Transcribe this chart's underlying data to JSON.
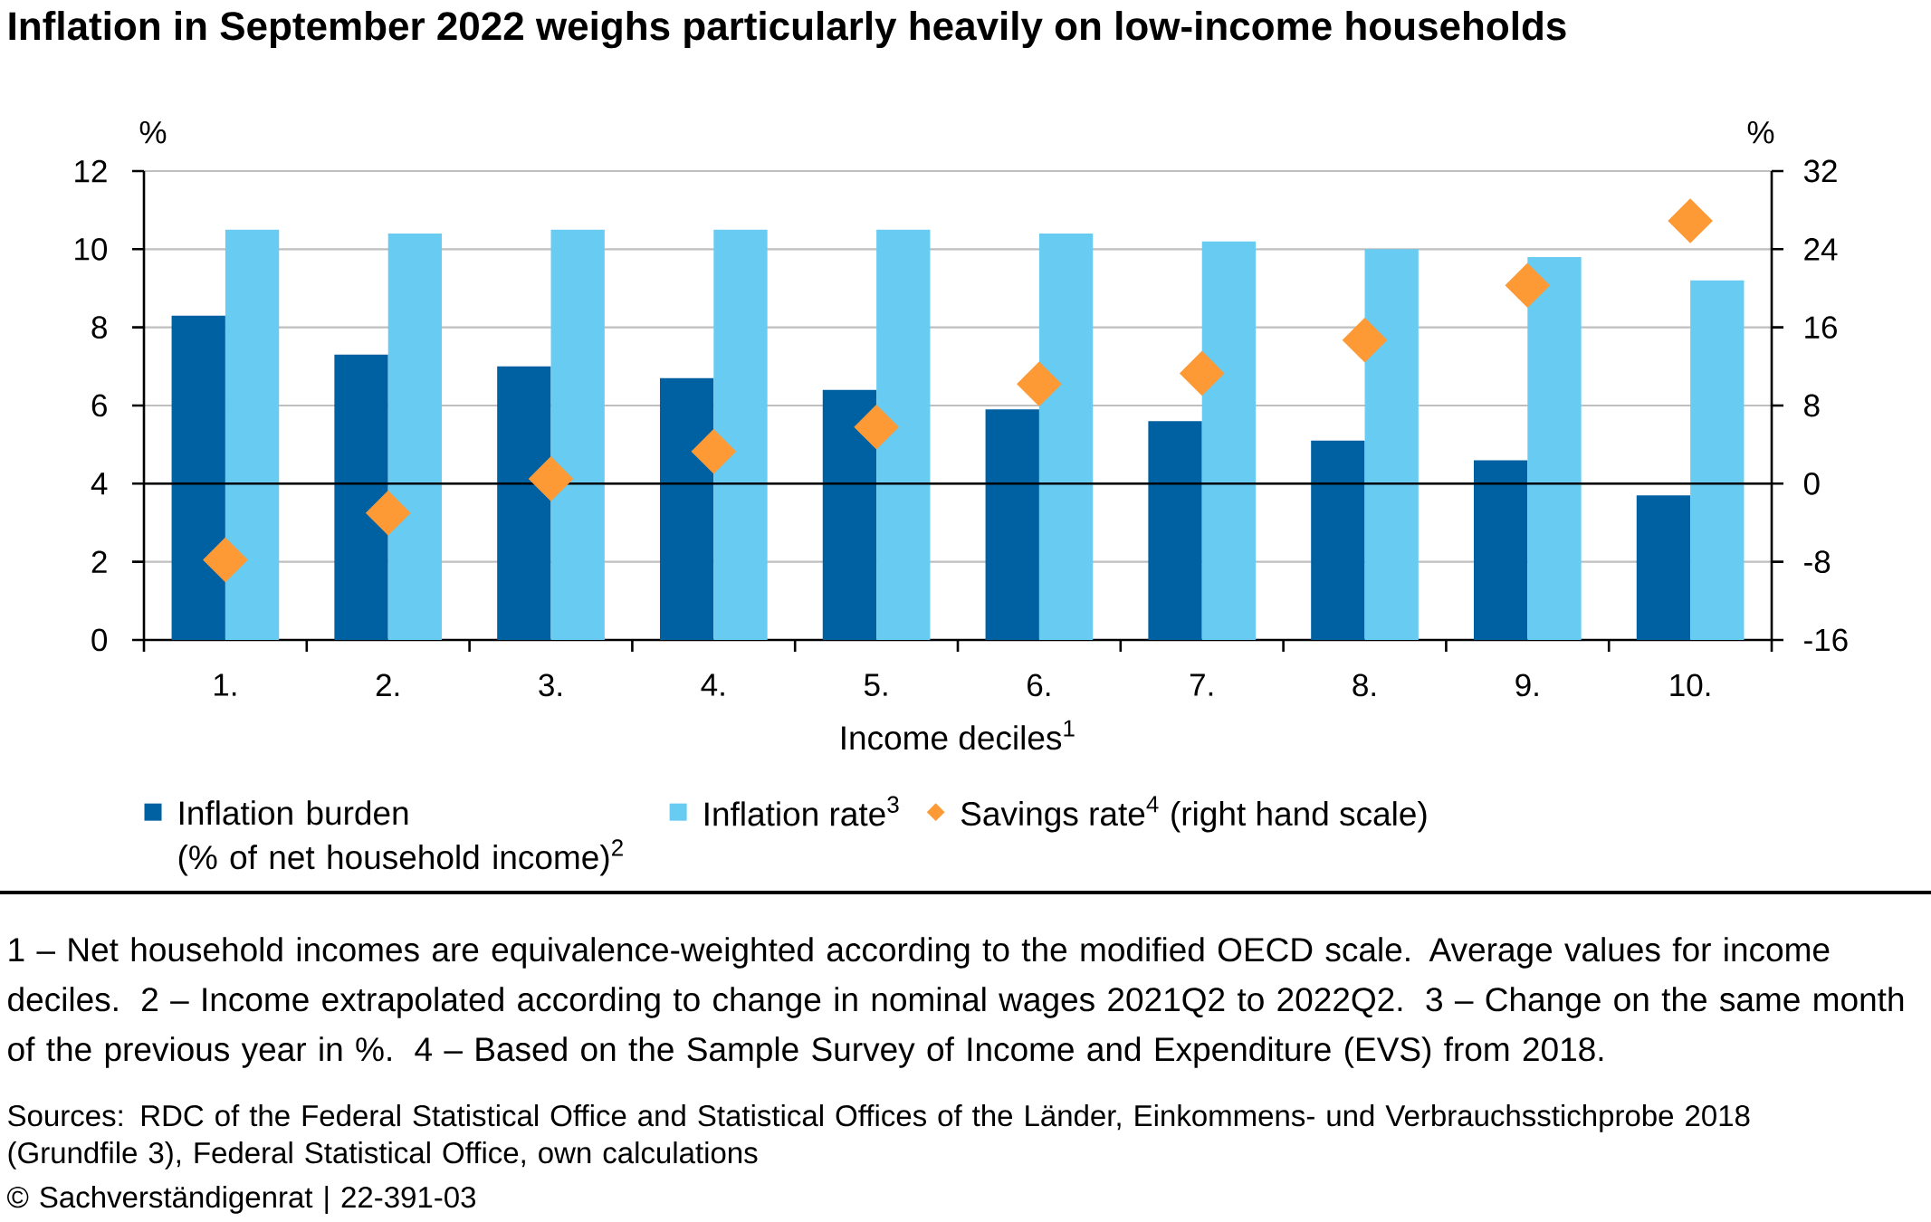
{
  "chart_data": {
    "type": "bar",
    "title": "Inflation in September 2022 weighs particularly heavily on low-income households",
    "xlabel": "Income deciles$^{1}$",
    "ylabel": "%",
    "y2label": "%",
    "categories": [
      "1.",
      "2.",
      "3.",
      "4.",
      "5.",
      "6.",
      "7.",
      "8.",
      "9.",
      "10."
    ],
    "series": [
      {
        "name": "Inflation burden\n(% of net household income)$^{2}$",
        "color": "#0061a2",
        "values": [
          8.3,
          7.3,
          7.0,
          6.7,
          6.4,
          5.9,
          5.6,
          5.1,
          4.6,
          3.7
        ]
      },
      {
        "name": "Inflation rate$^{3}$",
        "color": "#68cbf2",
        "values": [
          10.5,
          10.4,
          10.5,
          10.5,
          10.5,
          10.4,
          10.2,
          10.0,
          9.8,
          9.2
        ]
      },
      {
        "name": "Savings rate$^{4}$ (right hand scale)",
        "type": "scatter",
        "axis": "y2",
        "marker": "diamond",
        "color": "#fe9a35",
        "values": [
          -7.8,
          -3.0,
          0.5,
          3.3,
          5.8,
          10.2,
          11.3,
          14.7,
          20.3,
          26.9
        ]
      }
    ],
    "ylim": [
      0,
      12
    ],
    "yticks": [
      0,
      2,
      4,
      6,
      8,
      10,
      12
    ],
    "y2lim": [
      -16,
      32
    ],
    "y2ticks": [
      -16,
      -8,
      0,
      8,
      16,
      24,
      32
    ],
    "grid": "y",
    "legend": "bottom",
    "ref_lines": [
      {
        "axis": "y2",
        "value": 0,
        "color": "#000000"
      }
    ],
    "annotations": [
      "1 – Net household incomes are equivalence-weighted according to the modified OECD scale. Average values for income deciles.",
      "2 – Income extrapolated according to change in nominal wages 2021Q2 to 2022Q2.",
      "3 – Change on the same month of the previous year in %.",
      "4 – Based on the Sample Survey of Income and Expenditure (EVS) from 2018.",
      "Sources:  RDC of the Federal Statistical Office and Statistical Offices of the Länder, Einkommens- und Verbrauchsstichprobe 2018 (Grundfile 3), Federal Statistical Office, own calculations",
      "© Sachverständigenrat | 22-391-03"
    ]
  }
}
